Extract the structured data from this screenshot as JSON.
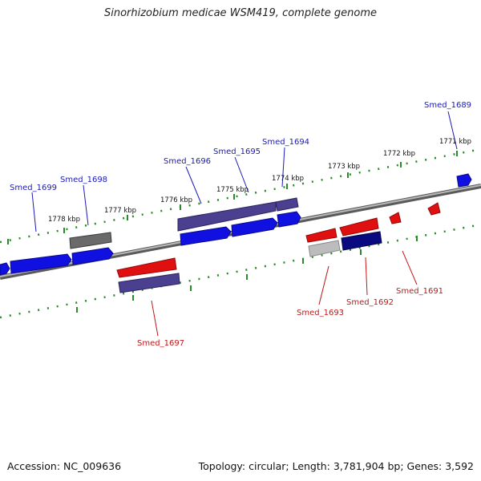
{
  "header": {
    "title": "Sinorhizobium medicae WSM419, complete genome"
  },
  "footer": {
    "accession": "Accession: NC_009636",
    "info": "Topology: circular; Length: 3,781,904 bp; Genes: 3,592"
  },
  "colors": {
    "backbone": "#8a8a8a",
    "ticks": "#2a8a2a",
    "label_forward": "#1a1ab8",
    "label_reverse": "#c01818"
  },
  "scale": {
    "ticks": [
      {
        "label": "1771 kbp"
      },
      {
        "label": "1772 kbp"
      },
      {
        "label": "1773 kbp"
      },
      {
        "label": "1774 kbp"
      },
      {
        "label": "1775 kbp"
      },
      {
        "label": "1776 kbp"
      },
      {
        "label": "1777 kbp"
      },
      {
        "label": "1778 kbp"
      }
    ]
  },
  "genes": {
    "labels": [
      {
        "name": "Smed_1689",
        "strand": "forward"
      },
      {
        "name": "Smed_1694",
        "strand": "forward"
      },
      {
        "name": "Smed_1695",
        "strand": "forward"
      },
      {
        "name": "Smed_1696",
        "strand": "forward"
      },
      {
        "name": "Smed_1698",
        "strand": "forward"
      },
      {
        "name": "Smed_1699",
        "strand": "forward"
      },
      {
        "name": "Smed_1691",
        "strand": "reverse"
      },
      {
        "name": "Smed_1692",
        "strand": "reverse"
      },
      {
        "name": "Smed_1693",
        "strand": "reverse"
      },
      {
        "name": "Smed_1697",
        "strand": "reverse"
      }
    ]
  }
}
